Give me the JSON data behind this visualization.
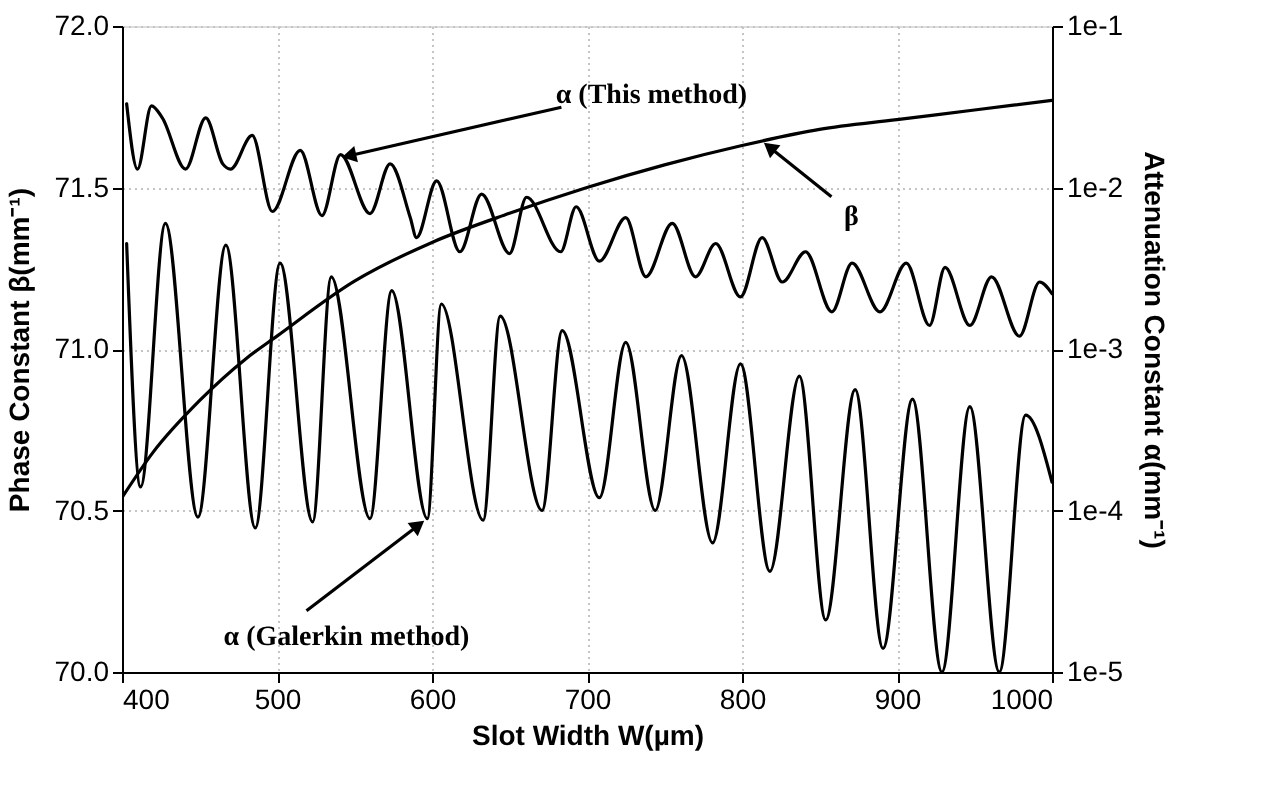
{
  "chart_data": {
    "type": "line",
    "xlabel": "Slot Width W(µm)",
    "ylabel": "Phase Constant β(mm⁻¹)",
    "y2label": "Attenuation Constant α(mm⁻¹)",
    "xlim": [
      400,
      1000
    ],
    "xticks": [
      400,
      500,
      600,
      700,
      800,
      900,
      1000
    ],
    "ylim": [
      70,
      72
    ],
    "yticks": [
      {
        "value": 70,
        "label": "70.0"
      },
      {
        "value": 70.5,
        "label": "70.5"
      },
      {
        "value": 71,
        "label": "71.0"
      },
      {
        "value": 71.5,
        "label": "71.5"
      },
      {
        "value": 72,
        "label": "72.0"
      }
    ],
    "y2lim": [
      1e-05,
      0.1
    ],
    "y2ticks": [
      {
        "value": 1e-05,
        "label": "1e-5"
      },
      {
        "value": 0.0001,
        "label": "1e-4"
      },
      {
        "value": 0.001,
        "label": "1e-3"
      },
      {
        "value": 0.01,
        "label": "1e-2"
      },
      {
        "value": 0.1,
        "label": "1e-1"
      }
    ],
    "log": "y2",
    "grid": true,
    "series": [
      {
        "color": "#000000",
        "x": [
          400,
          420,
          450,
          480,
          500,
          550,
          600,
          650,
          700,
          750,
          800,
          850,
          900,
          950,
          1000
        ],
        "values": [
          70.54,
          70.68,
          70.84,
          70.97,
          71.04,
          71.21,
          71.33,
          71.42,
          71.5,
          71.57,
          71.63,
          71.68,
          71.71,
          71.74,
          71.77
        ]
      },
      {
        "color": "#000000",
        "axis": "y2",
        "x": [
          403,
          410,
          419,
          426,
          441,
          454,
          465,
          470,
          484,
          497,
          515,
          529,
          541,
          560,
          573,
          586,
          590,
          603,
          618,
          632,
          650,
          661,
          683,
          693,
          708,
          725,
          738,
          755,
          770,
          783,
          799,
          813,
          826,
          841,
          858,
          871,
          889,
          906,
          921,
          931,
          947,
          961,
          979,
          992,
          1000
        ],
        "values": [
          0.033,
          0.013,
          0.032,
          0.027,
          0.013,
          0.027,
          0.014,
          0.013,
          0.021,
          0.0071,
          0.017,
          0.0067,
          0.016,
          0.0069,
          0.014,
          0.0065,
          0.0049,
          0.011,
          0.004,
          0.0091,
          0.0039,
          0.0087,
          0.004,
          0.0076,
          0.0035,
          0.0065,
          0.0028,
          0.006,
          0.0028,
          0.0045,
          0.0021,
          0.0049,
          0.0026,
          0.004,
          0.0017,
          0.0034,
          0.0017,
          0.0034,
          0.0014,
          0.0032,
          0.0014,
          0.0028,
          0.0012,
          0.0026,
          0.0022
        ]
      },
      {
        "color": "#000000",
        "axis": "y2",
        "x": [
          403,
          412,
          428,
          449,
          467,
          486,
          502,
          523,
          535,
          560,
          574,
          597,
          606,
          633,
          644,
          671,
          684,
          708,
          725,
          744,
          761,
          781,
          799,
          818,
          837,
          854,
          873,
          891,
          910,
          929,
          947,
          966,
          983,
          1000
        ],
        "values": [
          0.0045,
          0.00014,
          0.006,
          9.1e-05,
          0.0044,
          7.8e-05,
          0.0034,
          8.5e-05,
          0.0028,
          8.9e-05,
          0.0023,
          8.9e-05,
          0.0019,
          8.7e-05,
          0.0016,
          0.0001,
          0.0013,
          0.00012,
          0.0011,
          0.0001,
          0.00091,
          6.3e-05,
          0.00081,
          4.2e-05,
          0.00068,
          2.1e-05,
          0.00056,
          1.4e-05,
          0.00049,
          1e-05,
          0.00044,
          1e-05,
          0.00039,
          0.00015
        ]
      }
    ],
    "annotations": [
      {
        "text": "α (This method)",
        "x": 548,
        "y": 71.6
      },
      {
        "text": "β",
        "x": 819,
        "y": 71.62
      },
      {
        "text": "α (Galerkin method)",
        "x": 590,
        "y": 70.45
      }
    ]
  }
}
